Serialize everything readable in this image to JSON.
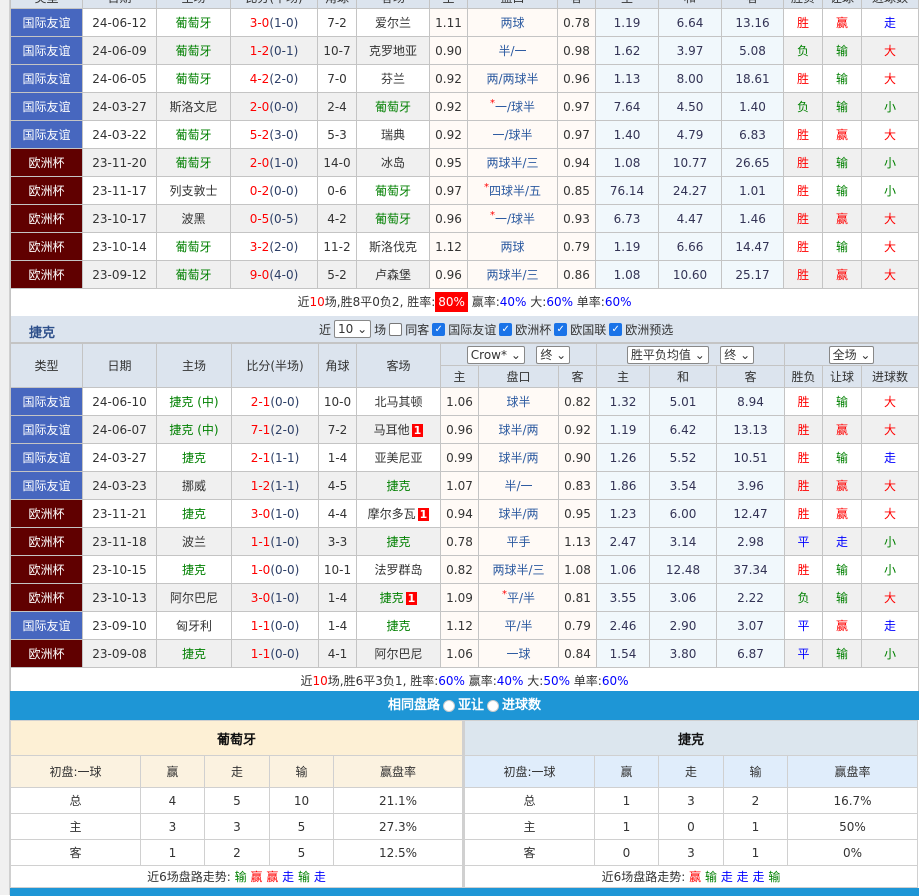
{
  "columns": [
    "类型",
    "日期",
    "主场",
    "比分(半场)",
    "角球",
    "客场",
    "主",
    "盘口",
    "客",
    "主",
    "和",
    "客",
    "胜负",
    "让球",
    "进球数"
  ],
  "portugal": {
    "team": "葡萄牙",
    "rows": [
      {
        "type": "国际友谊",
        "date": "24-06-12",
        "home": "葡萄牙",
        "score": "3-0",
        "half": "(1-0)",
        "corner": "7-2",
        "away": "爱尔兰",
        "oh": "1.11",
        "line": "两球",
        "oa": "0.78",
        "eh": "1.19",
        "ed": "6.64",
        "ea": "13.16",
        "res": "胜",
        "hc": "赢",
        "ou": "走"
      },
      {
        "type": "国际友谊",
        "date": "24-06-09",
        "home": "葡萄牙",
        "score": "1-2",
        "half": "(0-1)",
        "corner": "10-7",
        "away": "克罗地亚",
        "oh": "0.90",
        "line": "半/一",
        "oa": "0.98",
        "eh": "1.62",
        "ed": "3.97",
        "ea": "5.08",
        "res": "负",
        "hc": "输",
        "ou": "大"
      },
      {
        "type": "国际友谊",
        "date": "24-06-05",
        "home": "葡萄牙",
        "score": "4-2",
        "half": "(2-0)",
        "corner": "7-0",
        "away": "芬兰",
        "oh": "0.92",
        "line": "两/两球半",
        "oa": "0.96",
        "eh": "1.13",
        "ed": "8.00",
        "ea": "18.61",
        "res": "胜",
        "hc": "输",
        "ou": "大"
      },
      {
        "type": "国际友谊",
        "date": "24-03-27",
        "home": "斯洛文尼",
        "score": "2-0",
        "half": "(0-0)",
        "corner": "2-4",
        "away": "葡萄牙",
        "oh": "0.92",
        "star": "*",
        "line": "一/球半",
        "oa": "0.97",
        "eh": "7.64",
        "ed": "4.50",
        "ea": "1.40",
        "res": "负",
        "hc": "输",
        "ou": "小"
      },
      {
        "type": "国际友谊",
        "date": "24-03-22",
        "home": "葡萄牙",
        "score": "5-2",
        "half": "(3-0)",
        "corner": "5-3",
        "away": "瑞典",
        "oh": "0.92",
        "line": "一/球半",
        "oa": "0.97",
        "eh": "1.40",
        "ed": "4.79",
        "ea": "6.83",
        "res": "胜",
        "hc": "赢",
        "ou": "大"
      },
      {
        "type": "欧洲杯",
        "date": "23-11-20",
        "home": "葡萄牙",
        "score": "2-0",
        "half": "(1-0)",
        "corner": "14-0",
        "away": "冰岛",
        "oh": "0.95",
        "line": "两球半/三",
        "oa": "0.94",
        "eh": "1.08",
        "ed": "10.77",
        "ea": "26.65",
        "res": "胜",
        "hc": "输",
        "ou": "小"
      },
      {
        "type": "欧洲杯",
        "date": "23-11-17",
        "home": "列支敦士",
        "score": "0-2",
        "half": "(0-0)",
        "corner": "0-6",
        "away": "葡萄牙",
        "oh": "0.97",
        "star": "*",
        "line": "四球半/五",
        "oa": "0.85",
        "eh": "76.14",
        "ed": "24.27",
        "ea": "1.01",
        "res": "胜",
        "hc": "输",
        "ou": "小"
      },
      {
        "type": "欧洲杯",
        "date": "23-10-17",
        "home": "波黑",
        "score": "0-5",
        "half": "(0-5)",
        "corner": "4-2",
        "away": "葡萄牙",
        "oh": "0.96",
        "star": "*",
        "line": "一/球半",
        "oa": "0.93",
        "eh": "6.73",
        "ed": "4.47",
        "ea": "1.46",
        "res": "胜",
        "hc": "赢",
        "ou": "大"
      },
      {
        "type": "欧洲杯",
        "date": "23-10-14",
        "home": "葡萄牙",
        "score": "3-2",
        "half": "(2-0)",
        "corner": "11-2",
        "away": "斯洛伐克",
        "oh": "1.12",
        "line": "两球",
        "oa": "0.79",
        "eh": "1.19",
        "ed": "6.66",
        "ea": "14.47",
        "res": "胜",
        "hc": "输",
        "ou": "大"
      },
      {
        "type": "欧洲杯",
        "date": "23-09-12",
        "home": "葡萄牙",
        "score": "9-0",
        "half": "(4-0)",
        "corner": "5-2",
        "away": "卢森堡",
        "oh": "0.96",
        "line": "两球半/三",
        "oa": "0.86",
        "eh": "1.08",
        "ed": "10.60",
        "ea": "25.17",
        "res": "胜",
        "hc": "赢",
        "ou": "大"
      }
    ],
    "summary": {
      "near": "近",
      "count": "10",
      "s1": "场,胜",
      "w": "8",
      "s2": "平",
      "d": "0",
      "s3": "负",
      "l": "2",
      "s4": ", 胜率:",
      "win_rate": "80%",
      "s5": " 赢率:",
      "cover_rate": "40%",
      "s6": " 大:",
      "over_rate": "60%",
      "s7": " 单率:",
      "odd_rate": "60%"
    }
  },
  "czech": {
    "team": "捷克",
    "filter": {
      "near": "近",
      "count": "10",
      "unit": "场",
      "same": "同客",
      "leagues": [
        "国际友谊",
        "欧洲杯",
        "欧国联",
        "欧洲预选"
      ]
    },
    "selects": {
      "company": "Crow*",
      "time1": "终",
      "euro": "胜平负均值",
      "time2": "终",
      "scope": "全场"
    },
    "rows": [
      {
        "type": "国际友谊",
        "date": "24-06-10",
        "home": "捷克",
        "neutral": " (中)",
        "score": "2-1",
        "half": "(0-0)",
        "corner": "10-0",
        "away": "北马其顿",
        "oh": "1.06",
        "line": "球半",
        "oa": "0.82",
        "eh": "1.32",
        "ed": "5.01",
        "ea": "8.94",
        "res": "胜",
        "hc": "输",
        "ou": "大"
      },
      {
        "type": "国际友谊",
        "date": "24-06-07",
        "home": "捷克",
        "neutral": " (中)",
        "score": "7-1",
        "half": "(2-0)",
        "corner": "7-2",
        "away": "马耳他",
        "red": "1",
        "oh": "0.96",
        "line": "球半/两",
        "oa": "0.92",
        "eh": "1.19",
        "ed": "6.42",
        "ea": "13.13",
        "res": "胜",
        "hc": "赢",
        "ou": "大"
      },
      {
        "type": "国际友谊",
        "date": "24-03-27",
        "home": "捷克",
        "score": "2-1",
        "half": "(1-1)",
        "corner": "1-4",
        "away": "亚美尼亚",
        "oh": "0.99",
        "line": "球半/两",
        "oa": "0.90",
        "eh": "1.26",
        "ed": "5.52",
        "ea": "10.51",
        "res": "胜",
        "hc": "输",
        "ou": "走"
      },
      {
        "type": "国际友谊",
        "date": "24-03-23",
        "home": "挪威",
        "score": "1-2",
        "half": "(1-1)",
        "corner": "4-5",
        "away": "捷克",
        "oh": "1.07",
        "line": "半/一",
        "oa": "0.83",
        "eh": "1.86",
        "ed": "3.54",
        "ea": "3.96",
        "res": "胜",
        "hc": "赢",
        "ou": "大"
      },
      {
        "type": "欧洲杯",
        "date": "23-11-21",
        "home": "捷克",
        "score": "3-0",
        "half": "(1-0)",
        "corner": "4-4",
        "away": "摩尔多瓦",
        "red": "1",
        "oh": "0.94",
        "line": "球半/两",
        "oa": "0.95",
        "eh": "1.23",
        "ed": "6.00",
        "ea": "12.47",
        "res": "胜",
        "hc": "赢",
        "ou": "大"
      },
      {
        "type": "欧洲杯",
        "date": "23-11-18",
        "home": "波兰",
        "score": "1-1",
        "half": "(1-0)",
        "corner": "3-3",
        "away": "捷克",
        "oh": "0.78",
        "line": "平手",
        "oa": "1.13",
        "eh": "2.47",
        "ed": "3.14",
        "ea": "2.98",
        "res": "平",
        "hc": "走",
        "ou": "小"
      },
      {
        "type": "欧洲杯",
        "date": "23-10-15",
        "home": "捷克",
        "score": "1-0",
        "half": "(0-0)",
        "corner": "10-1",
        "away": "法罗群岛",
        "oh": "0.82",
        "line": "两球半/三",
        "oa": "1.08",
        "eh": "1.06",
        "ed": "12.48",
        "ea": "37.34",
        "res": "胜",
        "hc": "输",
        "ou": "小"
      },
      {
        "type": "欧洲杯",
        "date": "23-10-13",
        "home": "阿尔巴尼",
        "score": "3-0",
        "half": "(1-0)",
        "corner": "1-4",
        "away": "捷克",
        "red": "1",
        "oh": "1.09",
        "star": "*",
        "line": "平/半",
        "oa": "0.81",
        "eh": "3.55",
        "ed": "3.06",
        "ea": "2.22",
        "res": "负",
        "hc": "输",
        "ou": "大"
      },
      {
        "type": "国际友谊",
        "date": "23-09-10",
        "home": "匈牙利",
        "score": "1-1",
        "half": "(0-0)",
        "corner": "1-4",
        "away": "捷克",
        "oh": "1.12",
        "line": "平/半",
        "oa": "0.79",
        "eh": "2.46",
        "ed": "2.90",
        "ea": "3.07",
        "res": "平",
        "hc": "赢",
        "ou": "走"
      },
      {
        "type": "欧洲杯",
        "date": "23-09-08",
        "home": "捷克",
        "score": "1-1",
        "half": "(0-0)",
        "corner": "4-1",
        "away": "阿尔巴尼",
        "oh": "1.06",
        "line": "一球",
        "oa": "0.84",
        "eh": "1.54",
        "ed": "3.80",
        "ea": "6.87",
        "res": "平",
        "hc": "输",
        "ou": "小"
      }
    ],
    "summary": {
      "near": "近",
      "count": "10",
      "s1": "场,胜",
      "w": "6",
      "s2": "平",
      "d": "3",
      "s3": "负",
      "l": "1",
      "s4": ", 胜率:",
      "win_rate": "60%",
      "s5": " 赢率:",
      "cover_rate": "40%",
      "s6": " 大:",
      "over_rate": "50%",
      "s7": " 单率:",
      "odd_rate": "60%"
    }
  },
  "same_path": {
    "title": "相同盘路",
    "opt1": "亚让",
    "opt2": "进球数",
    "selected": "亚让"
  },
  "stats": [
    {
      "team": "葡萄牙",
      "head": [
        "初盘:一球",
        "赢",
        "走",
        "输",
        "赢盘率"
      ],
      "rows": [
        [
          "总",
          "4",
          "5",
          "10",
          "21.1%"
        ],
        [
          "主",
          "3",
          "3",
          "5",
          "27.3%"
        ],
        [
          "客",
          "1",
          "2",
          "5",
          "12.5%"
        ]
      ],
      "trend_label": "近6场盘路走势:",
      "trend": [
        "输",
        "赢",
        "赢",
        "走",
        "输",
        "走"
      ]
    },
    {
      "team": "捷克",
      "head": [
        "初盘:一球",
        "赢",
        "走",
        "输",
        "赢盘率"
      ],
      "rows": [
        [
          "总",
          "1",
          "3",
          "2",
          "16.7%"
        ],
        [
          "主",
          "1",
          "0",
          "1",
          "50%"
        ],
        [
          "客",
          "0",
          "3",
          "1",
          "0%"
        ]
      ],
      "trend_label": "近6场盘路走势:",
      "trend": [
        "赢",
        "输",
        "走",
        "走",
        "走",
        "输"
      ]
    }
  ],
  "colors": {
    "intl_badge": "#4767bf",
    "euro_badge": "#600000",
    "win": "#ff0000",
    "lose": "#008000",
    "draw": "#0000ff",
    "bar": "#1e96d6"
  }
}
